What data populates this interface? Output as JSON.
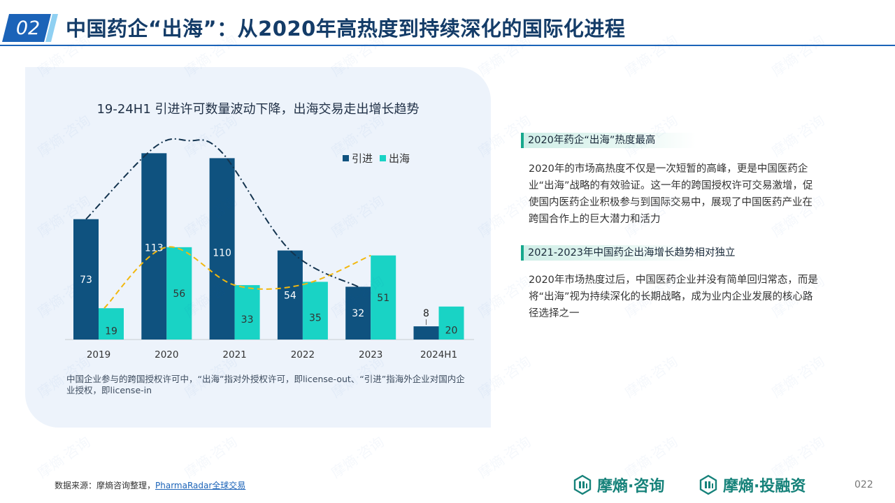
{
  "header": {
    "section_number": "02",
    "title": "中国药企“出海”：从2020年高热度到持续深化的国际化进程"
  },
  "chart_data": {
    "type": "bar",
    "title": "19-24H1 引进许可数量波动下降，出海交易走出增长趋势",
    "categories": [
      "2019",
      "2020",
      "2021",
      "2022",
      "2023",
      "2024H1"
    ],
    "series": [
      {
        "name": "引进",
        "color": "#0f527f",
        "values": [
          73,
          113,
          110,
          54,
          32,
          8
        ]
      },
      {
        "name": "出海",
        "color": "#19d3c5",
        "values": [
          19,
          56,
          33,
          35,
          51,
          20
        ]
      }
    ],
    "ylim": [
      0,
      120
    ],
    "xlabel": "",
    "ylabel": "",
    "legend_position": "top-right",
    "trend_lines": [
      {
        "series": "引进",
        "style": "dash-dot",
        "color": "#14344f"
      },
      {
        "series": "出海",
        "style": "dashed",
        "color": "#f2b80f"
      }
    ],
    "footnote": "中国企业参与的跨国授权许可中，“出海”指对外授权许可，即license-out、“引进”指海外企业对国内企业授权，即license-in"
  },
  "sections": [
    {
      "heading": "2020年药企“出海”热度最高",
      "body": "2020年的市场高热度不仅是一次短暂的高峰，更是中国医药企业“出海”战略的有效验证。这一年的跨国授权许可交易激增，促使国内医药企业积极参与到国际交易中，展现了中国医药产业在跨国合作上的巨大潜力和活力"
    },
    {
      "heading": "2021-2023年中国药企出海增长趋势相对独立",
      "body": "2020年市场热度过后，中国医药企业并没有简单回归常态，而是将“出海”视为持续深化的长期战略，成为业内企业发展的核心路径选择之一"
    }
  ],
  "footer": {
    "source_prefix": "数据来源：摩熵咨询整理，",
    "source_link": "PharmaRadar全球交易",
    "brand1": "摩熵·咨询",
    "brand2": "摩熵·投融资",
    "page_number": "022",
    "watermark": "摩熵·咨询"
  },
  "colors": {
    "header_blue": "#1b63b8",
    "title_navy": "#143c68",
    "brand_teal": "#16827a",
    "section_green": "#17a88d"
  }
}
